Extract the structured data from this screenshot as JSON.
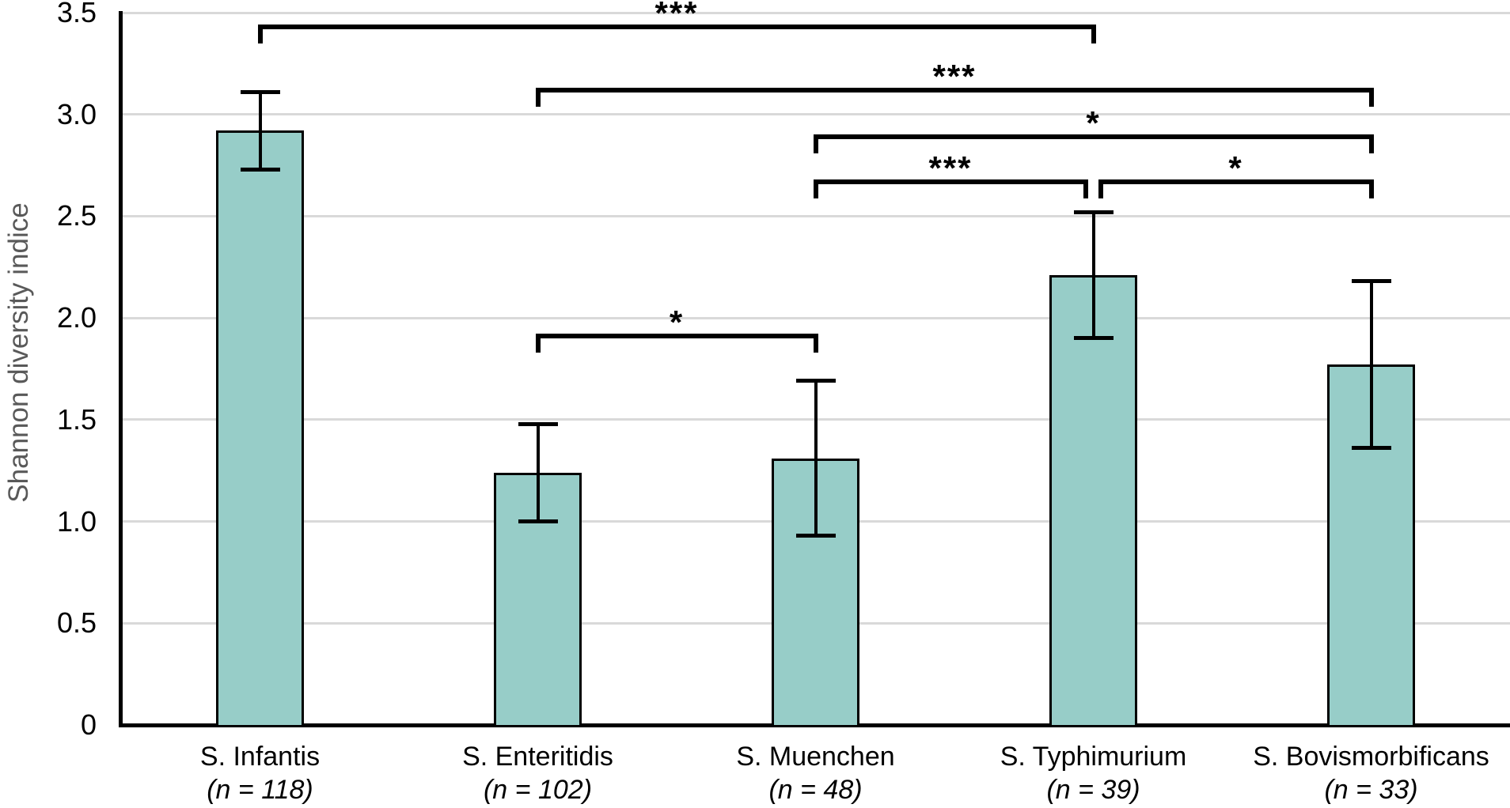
{
  "chart_data": {
    "type": "bar",
    "title": "",
    "xlabel": "",
    "ylabel": "Shannon diversity indice",
    "ylim": [
      0,
      3.5
    ],
    "grid": true,
    "legend": "none",
    "bar_color": "#97cdc8",
    "bar_border_color": "#000000",
    "gridline_color": "#d9d9d9",
    "ytick_values": [
      0,
      0.5,
      1.0,
      1.5,
      2.0,
      2.5,
      3.0,
      3.5
    ],
    "ytick_labels": [
      "0",
      "0.5",
      "1.0",
      "1.5",
      "2.0",
      "2.5",
      "3.0",
      "3.5"
    ],
    "categories": [
      {
        "name": "S. Infantis",
        "n_label": "(n = 118)",
        "value": 2.92,
        "err_low": 2.73,
        "err_high": 3.11
      },
      {
        "name": "S. Enteritidis",
        "n_label": "(n = 102)",
        "value": 1.24,
        "err_low": 1.0,
        "err_high": 1.48
      },
      {
        "name": "S. Muenchen",
        "n_label": "(n = 48)",
        "value": 1.31,
        "err_low": 0.93,
        "err_high": 1.69
      },
      {
        "name": "S. Typhimurium",
        "n_label": "(n = 39)",
        "value": 2.21,
        "err_low": 1.9,
        "err_high": 2.52
      },
      {
        "name": "S. Bovismorbificans",
        "n_label": "(n = 33)",
        "value": 1.77,
        "err_low": 1.36,
        "err_high": 2.18
      }
    ],
    "significance_brackets": [
      {
        "from": 0,
        "to": 3,
        "label": "***",
        "y": 3.43,
        "from_nudge": 0,
        "to_nudge": 0
      },
      {
        "from": 1,
        "to": 4,
        "label": "***",
        "y": 3.12,
        "from_nudge": 0,
        "to_nudge": 0
      },
      {
        "from": 2,
        "to": 4,
        "label": "*",
        "y": 2.89,
        "from_nudge": 0,
        "to_nudge": 0
      },
      {
        "from": 2,
        "to": 3,
        "label": "***",
        "y": 2.67,
        "from_nudge": 0,
        "to_nudge": -10
      },
      {
        "from": 3,
        "to": 4,
        "label": "*",
        "y": 2.67,
        "from_nudge": 9,
        "to_nudge": 0
      },
      {
        "from": 1,
        "to": 2,
        "label": "*",
        "y": 1.91,
        "from_nudge": 0,
        "to_nudge": 0
      }
    ]
  }
}
